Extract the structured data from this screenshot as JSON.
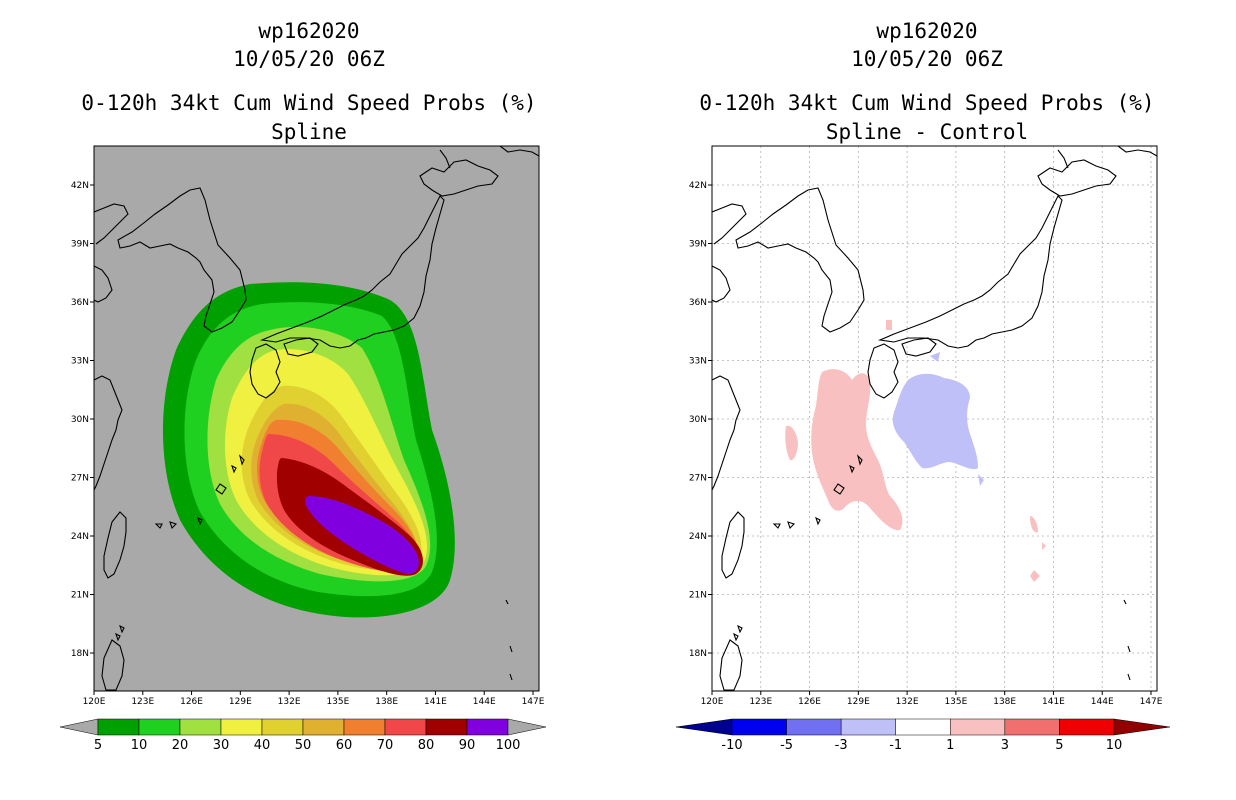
{
  "left": {
    "title1": "wp162020",
    "title2": "10/05/20 06Z",
    "title3": "0-120h 34kt Cum Wind Speed Probs (%)",
    "title4": "Spline",
    "colorbar": {
      "labels": [
        "5",
        "10",
        "20",
        "30",
        "40",
        "50",
        "60",
        "70",
        "80",
        "90",
        "100"
      ],
      "colors": [
        "#00a000",
        "#20d020",
        "#a0e040",
        "#f0f040",
        "#e0d030",
        "#e0b030",
        "#f08030",
        "#f04848",
        "#a00000",
        "#8000e0"
      ],
      "under_color": "#a9a9a9",
      "over_color": "#a9a9a9"
    }
  },
  "right": {
    "title1": "wp162020",
    "title2": "10/05/20 06Z",
    "title3": "0-120h 34kt Cum Wind Speed Probs (%)",
    "title4": "Spline - Control",
    "colorbar": {
      "labels": [
        "-10",
        "-5",
        "-3",
        "-1",
        "1",
        "3",
        "5",
        "10"
      ],
      "colors": [
        "#0000f0",
        "#7070f0",
        "#c0c0f8",
        "#ffffff",
        "#f8c0c0",
        "#f07070",
        "#f00000"
      ],
      "under_color": "#000090",
      "over_color": "#900000"
    }
  },
  "axes": {
    "x_ticks": [
      "120E",
      "123E",
      "126E",
      "129E",
      "132E",
      "135E",
      "138E",
      "141E",
      "144E",
      "147E"
    ],
    "y_ticks": [
      "42N",
      "39N",
      "36N",
      "33N",
      "30N",
      "27N",
      "24N",
      "21N",
      "18N"
    ]
  },
  "colors": {
    "land_ocean_gray": "#a9a9a9",
    "grid": "#b0b0b0",
    "contour_outer": "#00a000",
    "contour_10": "#20d020",
    "contour_20": "#a0e040",
    "contour_30": "#f0f040",
    "contour_40": "#e0d030",
    "contour_50": "#e0b030",
    "contour_60": "#f08030",
    "contour_70": "#f04848",
    "contour_80": "#a00000",
    "contour_90": "#8000e0",
    "diff_pos": "#f8c0c0",
    "diff_neg": "#c0c0f8"
  }
}
